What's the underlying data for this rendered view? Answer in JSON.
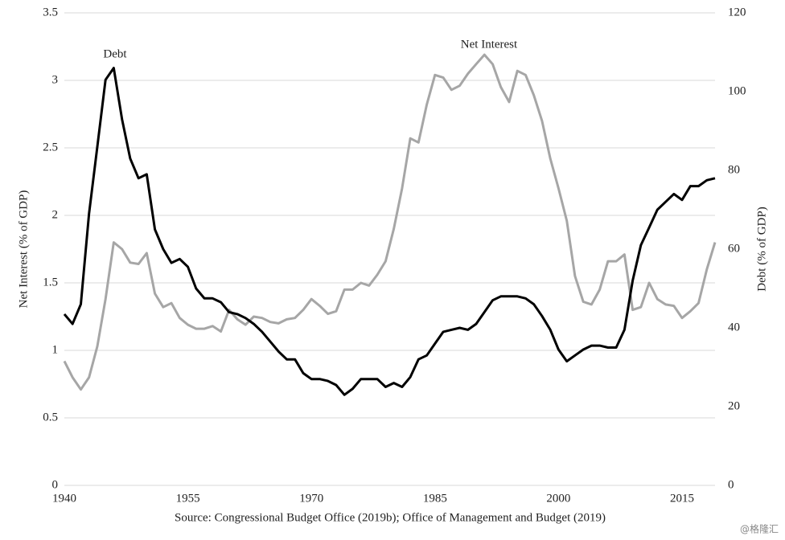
{
  "chart_data": {
    "type": "line",
    "x": [
      1940,
      1941,
      1942,
      1943,
      1944,
      1945,
      1946,
      1947,
      1948,
      1949,
      1950,
      1951,
      1952,
      1953,
      1954,
      1955,
      1956,
      1957,
      1958,
      1959,
      1960,
      1961,
      1962,
      1963,
      1964,
      1965,
      1966,
      1967,
      1968,
      1969,
      1970,
      1971,
      1972,
      1973,
      1974,
      1975,
      1976,
      1977,
      1978,
      1979,
      1980,
      1981,
      1982,
      1983,
      1984,
      1985,
      1986,
      1987,
      1988,
      1989,
      1990,
      1991,
      1992,
      1993,
      1994,
      1995,
      1996,
      1997,
      1998,
      1999,
      2000,
      2001,
      2002,
      2003,
      2004,
      2005,
      2006,
      2007,
      2008,
      2009,
      2010,
      2011,
      2012,
      2013,
      2014,
      2015,
      2016,
      2017,
      2018,
      2019
    ],
    "xlim": [
      1940,
      2019
    ],
    "xticks": [
      1940,
      1955,
      1970,
      1985,
      2000,
      2015
    ],
    "ylim": [
      0,
      3.5
    ],
    "yticks": [
      0,
      0.5,
      1,
      1.5,
      2,
      2.5,
      3,
      3.5
    ],
    "y2lim": [
      0,
      120
    ],
    "y2ticks": [
      0,
      20,
      40,
      60,
      80,
      100,
      120
    ],
    "ylabel": "Net Interest (% of GDP)",
    "y2label": "Debt (% of GDP)",
    "grid": true,
    "source": "Source: Congressional Budget Office (2019b); Office of Management and Budget (2019)",
    "watermark": "@格隆汇",
    "series": [
      {
        "name": "Net Interest",
        "color": "#a6a6a6",
        "axis": "y",
        "values": [
          0.92,
          0.8,
          0.71,
          0.8,
          1.03,
          1.38,
          1.8,
          1.75,
          1.65,
          1.64,
          1.72,
          1.42,
          1.32,
          1.35,
          1.24,
          1.19,
          1.16,
          1.16,
          1.18,
          1.14,
          1.3,
          1.23,
          1.19,
          1.25,
          1.24,
          1.21,
          1.2,
          1.23,
          1.24,
          1.3,
          1.38,
          1.33,
          1.27,
          1.29,
          1.45,
          1.45,
          1.5,
          1.48,
          1.56,
          1.66,
          1.9,
          2.2,
          2.57,
          2.54,
          2.82,
          3.04,
          3.02,
          2.93,
          2.96,
          3.05,
          3.12,
          3.19,
          3.12,
          2.95,
          2.84,
          3.07,
          3.04,
          2.89,
          2.7,
          2.42,
          2.2,
          1.96,
          1.55,
          1.36,
          1.34,
          1.45,
          1.66,
          1.66,
          1.71,
          1.3,
          1.32,
          1.5,
          1.38,
          1.34,
          1.33,
          1.24,
          1.29,
          1.35,
          1.6,
          1.8
        ]
      },
      {
        "name": "Debt",
        "color": "#000000",
        "axis": "y2",
        "values": [
          43.5,
          41,
          46,
          69,
          86,
          103,
          106,
          93,
          83,
          78,
          79,
          65,
          60,
          56.5,
          57.5,
          55.5,
          50,
          47.5,
          47.5,
          46.5,
          44,
          43.5,
          42.5,
          41,
          39,
          36.5,
          34,
          32,
          32,
          28.5,
          27,
          27,
          26.5,
          25.5,
          23,
          24.5,
          27,
          27,
          27,
          25,
          26,
          25,
          27.5,
          32,
          33,
          36,
          39,
          39.5,
          40,
          39.5,
          41,
          44,
          47,
          48,
          48,
          48,
          47.5,
          46,
          43,
          39.5,
          34.5,
          31.5,
          33,
          34.5,
          35.5,
          35.5,
          35,
          35,
          39.5,
          52,
          61,
          65.5,
          70,
          72,
          74,
          72.5,
          76,
          76,
          77.5,
          78
        ]
      }
    ]
  }
}
